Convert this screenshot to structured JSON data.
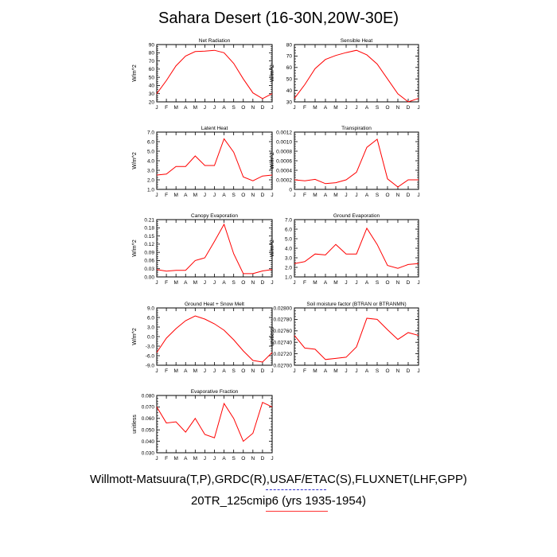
{
  "title": "Sahara Desert (16-30N,20W-30E)",
  "footer": {
    "observations": "Willmott-Matsuura(T,P),GRDC(R),USAF/ETAC(S),FLUXNET(LHF,GPP)",
    "model": "20TR_125cmip6 (yrs 1935-1954)"
  },
  "colors": {
    "model_line": "#ff0000",
    "obs_swatch": "#3333cc",
    "axis": "#000000"
  },
  "months": [
    "J",
    "F",
    "M",
    "A",
    "M",
    "J",
    "J",
    "A",
    "S",
    "O",
    "N",
    "D",
    "J"
  ],
  "chart_data": [
    {
      "type": "line",
      "title": "Net Radiation",
      "ylabel": "W/m^2",
      "xlabel": "",
      "ylim": [
        20,
        90
      ],
      "yticks": [
        "20",
        "30",
        "40",
        "50",
        "60",
        "70",
        "80",
        "90"
      ],
      "series": [
        {
          "values": [
            30,
            46,
            64,
            76,
            81.5,
            82,
            83,
            80,
            67,
            48,
            31,
            24,
            30
          ]
        }
      ]
    },
    {
      "type": "line",
      "title": "Sensible Heat",
      "ylabel": "W/m^2",
      "xlabel": "",
      "ylim": [
        30,
        80
      ],
      "yticks": [
        "30",
        "40",
        "50",
        "60",
        "70",
        "80"
      ],
      "series": [
        {
          "values": [
            33,
            45,
            59,
            67,
            70.5,
            73,
            75,
            71,
            63,
            50,
            37,
            30,
            33
          ]
        }
      ]
    },
    {
      "type": "line",
      "title": "Latent Heat",
      "ylabel": "W/m^2",
      "xlabel": "",
      "ylim": [
        1.0,
        7.0
      ],
      "yticks": [
        "1.0",
        "2.0",
        "3.0",
        "4.0",
        "5.0",
        "6.0",
        "7.0"
      ],
      "series": [
        {
          "values": [
            2.5,
            2.6,
            3.4,
            3.4,
            4.5,
            3.5,
            3.5,
            6.3,
            4.9,
            2.3,
            1.9,
            2.4,
            2.5
          ]
        }
      ]
    },
    {
      "type": "line",
      "title": "Transpiration",
      "ylabel": "W/m^2",
      "xlabel": "",
      "ylim": [
        0,
        0.0012
      ],
      "yticks": [
        "0",
        "0.0002",
        "0.0004",
        "0.0006",
        "0.0008",
        "0.0010",
        "0.0012"
      ],
      "series": [
        {
          "values": [
            0.0002,
            0.00018,
            0.00021,
            0.00012,
            0.00014,
            0.0002,
            0.00036,
            0.00088,
            0.00105,
            0.00022,
            5e-05,
            0.0002,
            0.0002
          ]
        }
      ]
    },
    {
      "type": "line",
      "title": "Canopy Evaporation",
      "ylabel": "W/m^2",
      "xlabel": "",
      "ylim": [
        0,
        0.21
      ],
      "yticks": [
        "0.00",
        "0.03",
        "0.06",
        "0.09",
        "0.12",
        "0.15",
        "0.18",
        "0.21"
      ],
      "series": [
        {
          "values": [
            0.027,
            0.021,
            0.024,
            0.024,
            0.06,
            0.07,
            0.13,
            0.193,
            0.085,
            0.012,
            0.012,
            0.022,
            0.027
          ]
        }
      ]
    },
    {
      "type": "line",
      "title": "Ground Evaporation",
      "ylabel": "W/m^2",
      "xlabel": "",
      "ylim": [
        1.0,
        7.0
      ],
      "yticks": [
        "1.0",
        "2.0",
        "3.0",
        "4.0",
        "5.0",
        "6.0",
        "7.0"
      ],
      "series": [
        {
          "values": [
            2.4,
            2.6,
            3.4,
            3.3,
            4.4,
            3.4,
            3.4,
            6.1,
            4.4,
            2.2,
            1.9,
            2.3,
            2.4
          ]
        }
      ]
    },
    {
      "type": "line",
      "title": "Ground Heat + Snow Melt",
      "ylabel": "W/m^2",
      "xlabel": "",
      "ylim": [
        -9.0,
        9.0
      ],
      "yticks": [
        "-9.0",
        "-6.0",
        "-3.0",
        "0.0",
        "3.0",
        "6.0",
        "9.0"
      ],
      "series": [
        {
          "values": [
            -5.0,
            -0.5,
            2.5,
            5.0,
            6.5,
            5.5,
            4.0,
            2.0,
            -1.0,
            -4.5,
            -7.5,
            -8.0,
            -5.0
          ]
        }
      ]
    },
    {
      "type": "line",
      "title": "Soil moisture factor (BTRAN or BTRANMN)",
      "ylabel": "unitless",
      "xlabel": "",
      "ylim": [
        0.027,
        0.028
      ],
      "yticks": [
        "0.02700",
        "0.02720",
        "0.02740",
        "0.02760",
        "0.02780",
        "0.02800"
      ],
      "series": [
        {
          "values": [
            0.02752,
            0.0273,
            0.02728,
            0.0271,
            0.02712,
            0.02714,
            0.02732,
            0.02782,
            0.0278,
            0.02762,
            0.02745,
            0.02757,
            0.02752
          ]
        }
      ]
    },
    {
      "type": "line",
      "title": "Evaporative Fraction",
      "ylabel": "unitless",
      "xlabel": "",
      "ylim": [
        0.03,
        0.08
      ],
      "yticks": [
        "0.030",
        "0.040",
        "0.050",
        "0.060",
        "0.070",
        "0.080"
      ],
      "series": [
        {
          "values": [
            0.07,
            0.056,
            0.057,
            0.048,
            0.06,
            0.046,
            0.043,
            0.073,
            0.06,
            0.04,
            0.047,
            0.074,
            0.07
          ]
        }
      ]
    }
  ]
}
